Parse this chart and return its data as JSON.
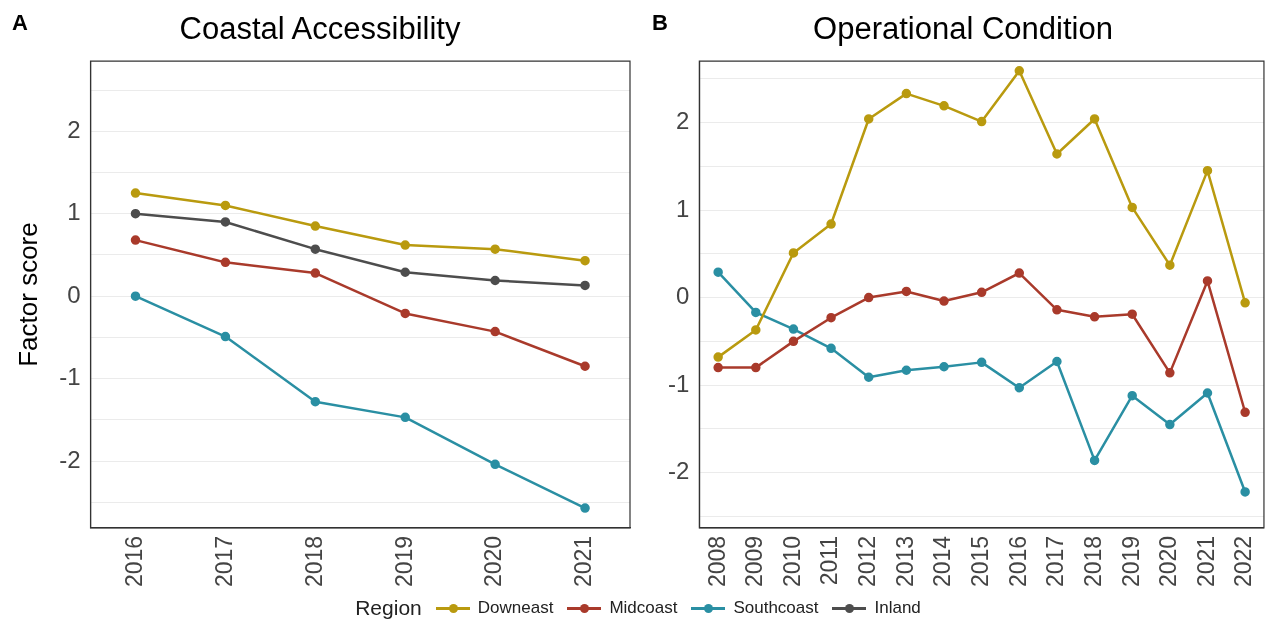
{
  "chart_data": [
    {
      "type": "line",
      "title": "Coastal Accessibility",
      "ylabel": "Factor score",
      "annotations": [
        "A"
      ],
      "categories": [
        "2016",
        "2017",
        "2018",
        "2019",
        "2020",
        "2021"
      ],
      "series": [
        {
          "name": "Downeast",
          "color": "#b99a0f",
          "values": [
            1.25,
            1.1,
            0.85,
            0.62,
            0.57,
            0.43
          ]
        },
        {
          "name": "Midcoast",
          "color": "#a93a2b",
          "values": [
            0.68,
            0.41,
            0.28,
            -0.21,
            -0.43,
            -0.85
          ]
        },
        {
          "name": "Southcoast",
          "color": "#2a8fa3",
          "values": [
            0,
            -0.49,
            -1.28,
            -1.47,
            -2.04,
            -2.57
          ]
        },
        {
          "name": "Inland",
          "color": "#4d4d4d",
          "values": [
            1.0,
            0.9,
            0.57,
            0.29,
            0.19,
            0.13
          ]
        }
      ],
      "ylim": [
        -2.81,
        2.85
      ],
      "yticks": [
        {
          "value": -2.5,
          "label": null
        },
        -2,
        {
          "value": -1.5,
          "label": null
        },
        -1,
        {
          "value": -0.5,
          "label": null
        },
        0,
        {
          "value": 0.5,
          "label": null
        },
        1,
        {
          "value": 1.5,
          "label": null
        },
        2,
        {
          "value": 2.5,
          "label": null
        }
      ],
      "grid": "y",
      "legend": "bottom",
      "legend_title": "Region",
      "marker": "circle",
      "line_style": "solid"
    },
    {
      "type": "line",
      "title": "Operational Condition",
      "annotations": [
        "B"
      ],
      "categories": [
        "2008",
        "2009",
        "2010",
        "2011",
        "2012",
        "2013",
        "2014",
        "2015",
        "2016",
        "2017",
        "2018",
        "2019",
        "2020",
        "2021",
        "2022"
      ],
      "series": [
        {
          "name": "Downeast",
          "color": "#b99a0f",
          "values": [
            -0.68,
            -0.37,
            0.51,
            0.84,
            2.04,
            2.33,
            2.19,
            2.01,
            2.59,
            1.64,
            2.04,
            1.03,
            0.37,
            1.45,
            -0.06
          ]
        },
        {
          "name": "Midcoast",
          "color": "#a93a2b",
          "values": [
            -0.8,
            -0.8,
            -0.5,
            -0.23,
            0,
            0.07,
            -0.04,
            0.06,
            0.28,
            -0.14,
            -0.22,
            -0.19,
            -0.86,
            0.19,
            -1.31
          ]
        },
        {
          "name": "Southcoast",
          "color": "#2a8fa3",
          "values": [
            0.29,
            -0.17,
            -0.36,
            -0.58,
            -0.91,
            -0.83,
            -0.79,
            -0.74,
            -1.03,
            -0.73,
            -1.86,
            -1.12,
            -1.45,
            -1.09,
            -2.22
          ]
        }
      ],
      "ylim": [
        -2.63,
        2.7
      ],
      "yticks": [
        {
          "value": -2.5,
          "label": null
        },
        -2,
        {
          "value": -1.5,
          "label": null
        },
        -1,
        {
          "value": -0.5,
          "label": null
        },
        0,
        {
          "value": 0.5,
          "label": null
        },
        1,
        {
          "value": 1.5,
          "label": null
        },
        2,
        {
          "value": 2.5,
          "label": null
        }
      ],
      "grid": "y",
      "legend": "bottom",
      "marker": "circle",
      "line_style": "solid"
    }
  ]
}
